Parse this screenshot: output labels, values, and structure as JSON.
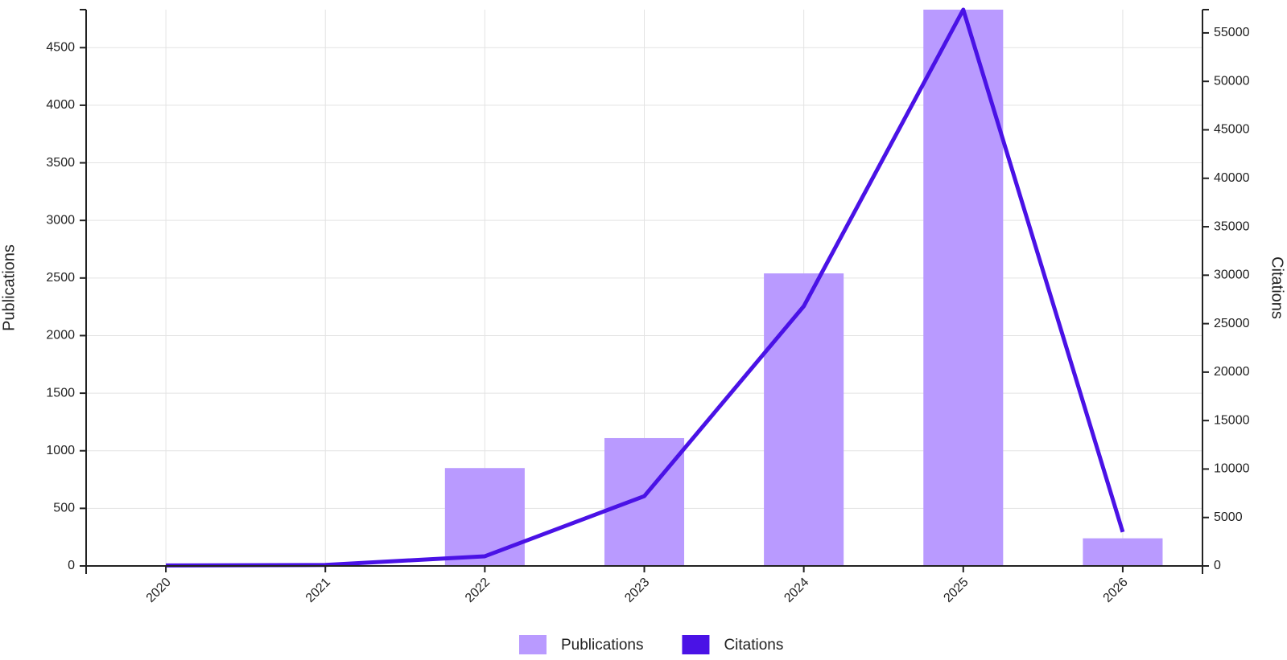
{
  "chart_data": {
    "type": "bar-line",
    "categories": [
      "2020",
      "2021",
      "2022",
      "2023",
      "2024",
      "2025",
      "2026"
    ],
    "series": [
      {
        "name": "Publications",
        "color": "#b99aff",
        "type": "bar",
        "values": [
          0,
          0,
          850,
          1110,
          2540,
          4830,
          240
        ]
      },
      {
        "name": "Citations",
        "color": "#4a12e6",
        "type": "line",
        "axis": "y2",
        "values": [
          50,
          100,
          1000,
          7200,
          26800,
          57400,
          3500
        ]
      }
    ],
    "y_label": "Publications",
    "y2_label": "Citations",
    "ylim": [
      0,
      4830
    ],
    "yticks": [
      0,
      500,
      1000,
      1500,
      2000,
      2500,
      3000,
      3500,
      4000,
      4500
    ],
    "y2lim": [
      0,
      57400
    ],
    "y2ticks": [
      0,
      5000,
      10000,
      15000,
      20000,
      25000,
      30000,
      35000,
      40000,
      45000,
      50000,
      55000
    ],
    "grid": true,
    "legend": "bottom"
  }
}
